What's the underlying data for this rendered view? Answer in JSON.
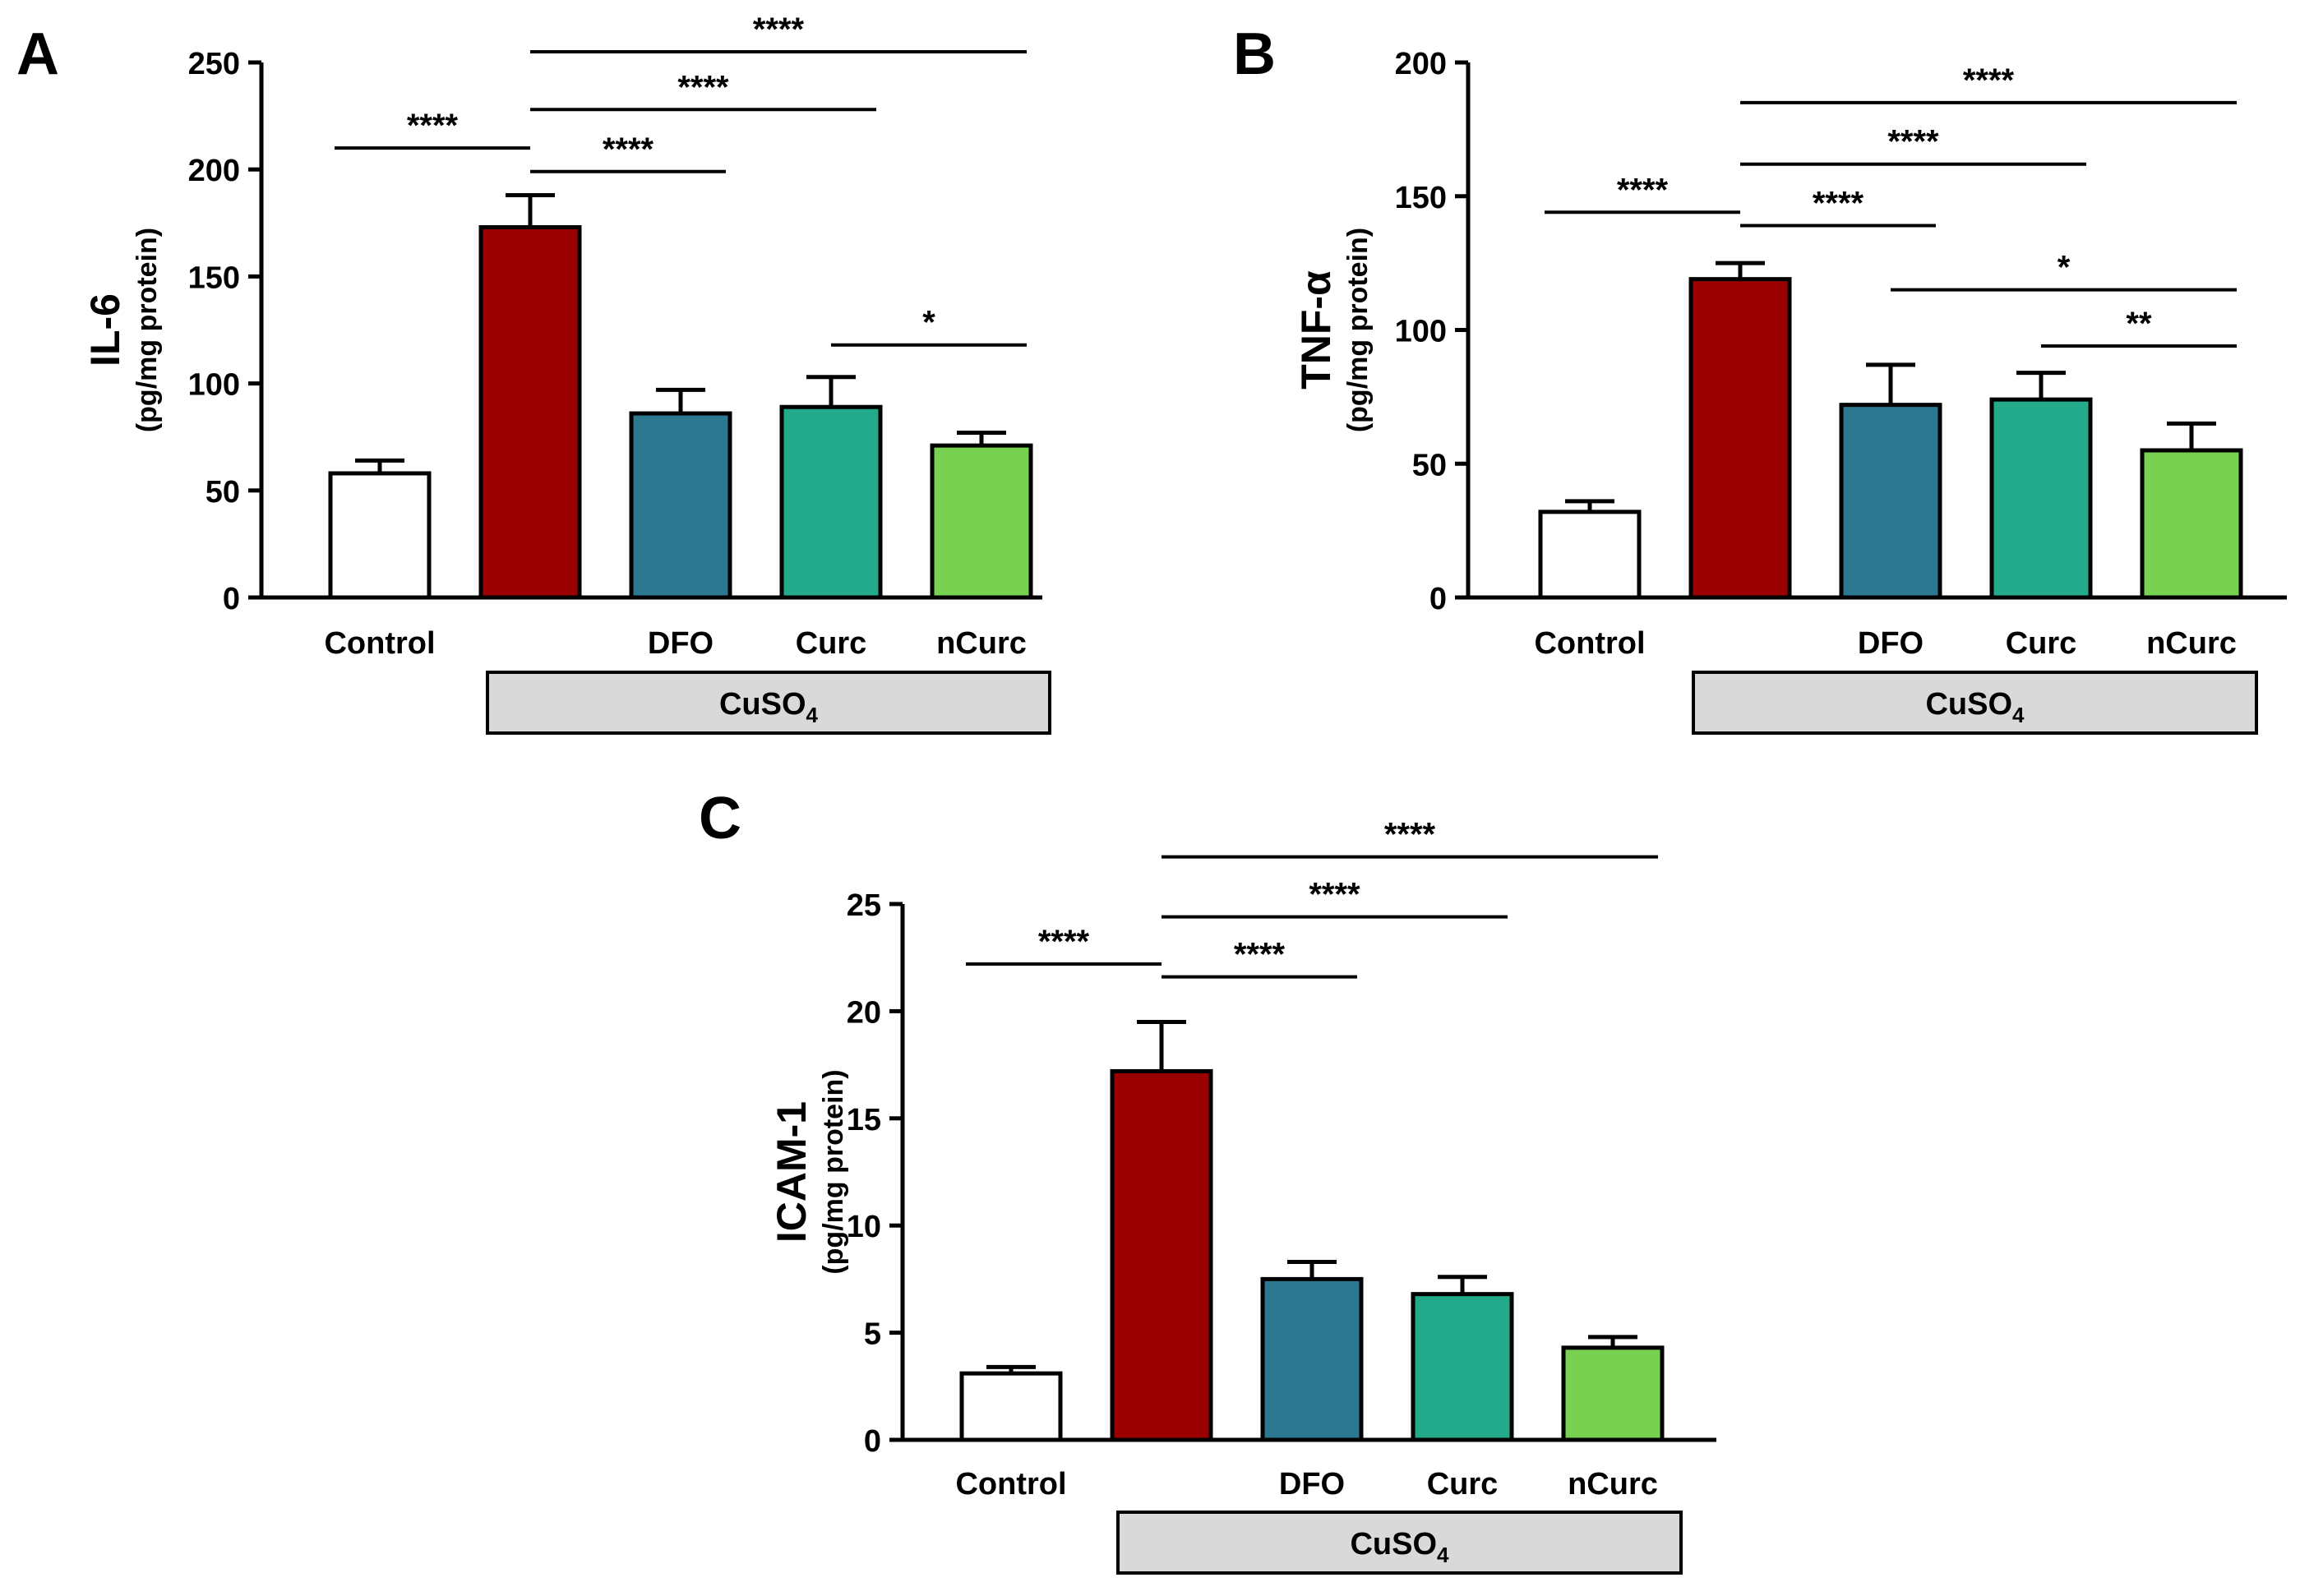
{
  "chart_data": [
    {
      "type": "bar",
      "panel_label": "A",
      "ylabel": "IL-6",
      "ylabel_unit": "(pg/mg protein)",
      "ylim": [
        0,
        250
      ],
      "yticks": [
        "0",
        "50",
        "100",
        "150",
        "200",
        "250"
      ],
      "categories": [
        "Control",
        "",
        "DFO",
        "Curc",
        "nCurc"
      ],
      "group_label": "CuSO",
      "group_label_sub": "4",
      "colors": [
        "#ffffff",
        "#9b0000",
        "#2c7891",
        "#23aa8b",
        "#78d151"
      ],
      "values": [
        58,
        173,
        86,
        89,
        71
      ],
      "errors": [
        6,
        15,
        11,
        14,
        6
      ],
      "significance": [
        {
          "from": 0,
          "to": 1,
          "label": "****",
          "y": 210
        },
        {
          "from": 1,
          "to": 2,
          "label": "****",
          "y": 199
        },
        {
          "from": 1,
          "to": 3,
          "label": "****",
          "y": 228
        },
        {
          "from": 1,
          "to": 4,
          "label": "****",
          "y": 255
        },
        {
          "from": 3,
          "to": 4,
          "label": "*",
          "y": 118
        }
      ]
    },
    {
      "type": "bar",
      "panel_label": "B",
      "ylabel": "TNF-α",
      "ylabel_unit": "(pg/mg protein)",
      "ylim": [
        0,
        200
      ],
      "yticks": [
        "0",
        "50",
        "100",
        "150",
        "200"
      ],
      "categories": [
        "Control",
        "",
        "DFO",
        "Curc",
        "nCurc"
      ],
      "group_label": "CuSO",
      "group_label_sub": "4",
      "colors": [
        "#ffffff",
        "#9b0000",
        "#2c7891",
        "#23aa8b",
        "#78d151"
      ],
      "values": [
        32,
        119,
        72,
        74,
        55
      ],
      "errors": [
        4,
        6,
        15,
        10,
        10
      ],
      "significance": [
        {
          "from": 0,
          "to": 1,
          "label": "****",
          "y": 144
        },
        {
          "from": 1,
          "to": 2,
          "label": "****",
          "y": 139
        },
        {
          "from": 1,
          "to": 3,
          "label": "****",
          "y": 162
        },
        {
          "from": 1,
          "to": 4,
          "label": "****",
          "y": 185
        },
        {
          "from": 2,
          "to": 4,
          "label": "*",
          "y": 115
        },
        {
          "from": 3,
          "to": 4,
          "label": "**",
          "y": 94
        }
      ]
    },
    {
      "type": "bar",
      "panel_label": "C",
      "ylabel": "ICAM-1",
      "ylabel_unit": "(pg/mg protein)",
      "ylim": [
        0,
        25
      ],
      "yticks": [
        "0",
        "5",
        "10",
        "15",
        "20",
        "25"
      ],
      "categories": [
        "Control",
        "",
        "DFO",
        "Curc",
        "nCurc"
      ],
      "group_label": "CuSO",
      "group_label_sub": "4",
      "colors": [
        "#ffffff",
        "#9b0000",
        "#2c7891",
        "#23aa8b",
        "#78d151"
      ],
      "values": [
        3.1,
        17.2,
        7.5,
        6.8,
        4.3
      ],
      "errors": [
        0.3,
        2.3,
        0.8,
        0.8,
        0.5
      ],
      "significance": [
        {
          "from": 0,
          "to": 1,
          "label": "****",
          "y": 22.2
        },
        {
          "from": 1,
          "to": 2,
          "label": "****",
          "y": 21.6
        },
        {
          "from": 1,
          "to": 3,
          "label": "****",
          "y": 24.4
        },
        {
          "from": 1,
          "to": 4,
          "label": "****",
          "y": 27.2
        }
      ]
    }
  ]
}
